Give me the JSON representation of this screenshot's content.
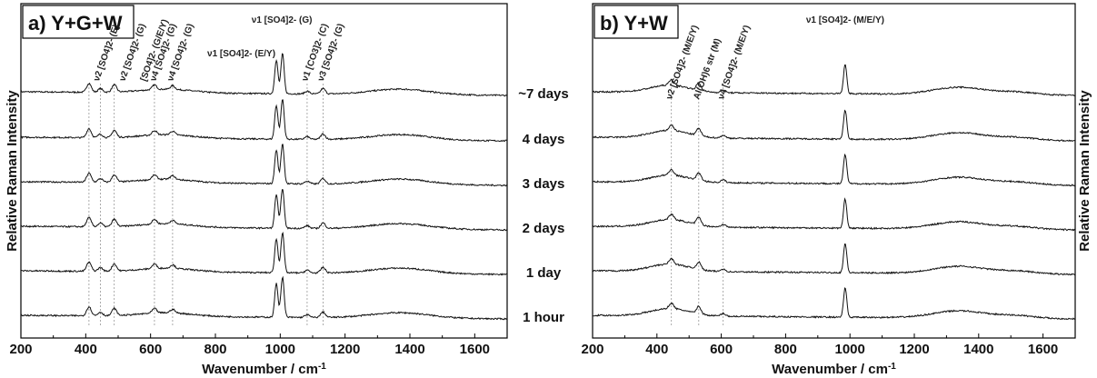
{
  "chart_data": [
    {
      "panel": "left",
      "type": "line",
      "panel_label": "a) Y+G+W",
      "xlabel": "Wavenumber / cm-1",
      "ylabel": "Relative Raman Intensity",
      "xlim": [
        200,
        1700
      ],
      "xticks": [
        200,
        400,
        600,
        800,
        1000,
        1200,
        1400,
        1600
      ],
      "grid": false,
      "series": [
        {
          "name": "~7 days"
        },
        {
          "name": "4 days"
        },
        {
          "name": "3 days"
        },
        {
          "name": "2 days"
        },
        {
          "name": "1 day"
        },
        {
          "name": "1 hour"
        }
      ],
      "peaks": [
        {
          "x": 410,
          "h": 10
        },
        {
          "x": 445,
          "h": 4
        },
        {
          "x": 488,
          "h": 8
        },
        {
          "x": 612,
          "h": 5
        },
        {
          "x": 668,
          "h": 4
        },
        {
          "x": 988,
          "h": 37
        },
        {
          "x": 1007,
          "h": 44
        },
        {
          "x": 1083,
          "h": 3
        },
        {
          "x": 1132,
          "h": 6
        }
      ],
      "broad": [
        {
          "x": 1370,
          "h": 6,
          "w": 90
        },
        {
          "x": 650,
          "h": 4,
          "w": 80
        }
      ],
      "annotations": [
        {
          "x": 440,
          "text": "ν2 [SO4]2- (E)"
        },
        {
          "x": 520,
          "text": "ν2 [SO4]2- (G)"
        },
        {
          "x": 585,
          "text": "[SO4]2- (G/E/Y)"
        },
        {
          "x": 615,
          "text": "ν4 [SO4]2- (G)"
        },
        {
          "x": 668,
          "text": "ν4 [SO4]2- (G)"
        },
        {
          "x": 880,
          "text": "ν1 [SO4]2- (E/Y)"
        },
        {
          "x": 1005,
          "text": "ν1 [SO4]2- (G)"
        },
        {
          "x": 1083,
          "text": "ν1 [CO3]2- (C)"
        },
        {
          "x": 1132,
          "text": "ν3 [SO4]2- (G)"
        }
      ],
      "guide_lines": [
        410,
        445,
        488,
        612,
        668,
        1083,
        1132
      ]
    },
    {
      "panel": "right",
      "type": "line",
      "panel_label": "b) Y+W",
      "xlabel": "Wavenumber / cm-1",
      "ylabel": "Relative Raman Intensity",
      "xlim": [
        200,
        1700
      ],
      "xticks": [
        200,
        400,
        600,
        800,
        1000,
        1200,
        1400,
        1600
      ],
      "grid": false,
      "series": [
        {
          "name": "~7 days"
        },
        {
          "name": "4 days"
        },
        {
          "name": "3 days"
        },
        {
          "name": "2 days"
        },
        {
          "name": "1 day"
        },
        {
          "name": "1 hour"
        }
      ],
      "peaks": [
        {
          "x": 445,
          "h": 6
        },
        {
          "x": 530,
          "h": 8
        },
        {
          "x": 606,
          "h": 3
        },
        {
          "x": 985,
          "h": 32
        }
      ],
      "broad": [
        {
          "x": 440,
          "h": 8,
          "w": 60
        },
        {
          "x": 1340,
          "h": 8,
          "w": 80
        },
        {
          "x": 1520,
          "h": 3,
          "w": 60
        }
      ],
      "annotations": [
        {
          "x": 445,
          "text": "ν2 [SO4]2- (M/E/Y)"
        },
        {
          "x": 530,
          "text": "Al(OH)6 str (M)"
        },
        {
          "x": 606,
          "text": "ν4 [SO4]2- (M/E/Y)"
        },
        {
          "x": 985,
          "text": "ν1 [SO4]2- (M/E/Y)"
        }
      ],
      "guide_lines": [
        445,
        530,
        606
      ]
    }
  ],
  "time_labels": [
    "~7 days",
    "4 days",
    "3 days",
    "2 days",
    "1 day",
    "1 hour"
  ]
}
